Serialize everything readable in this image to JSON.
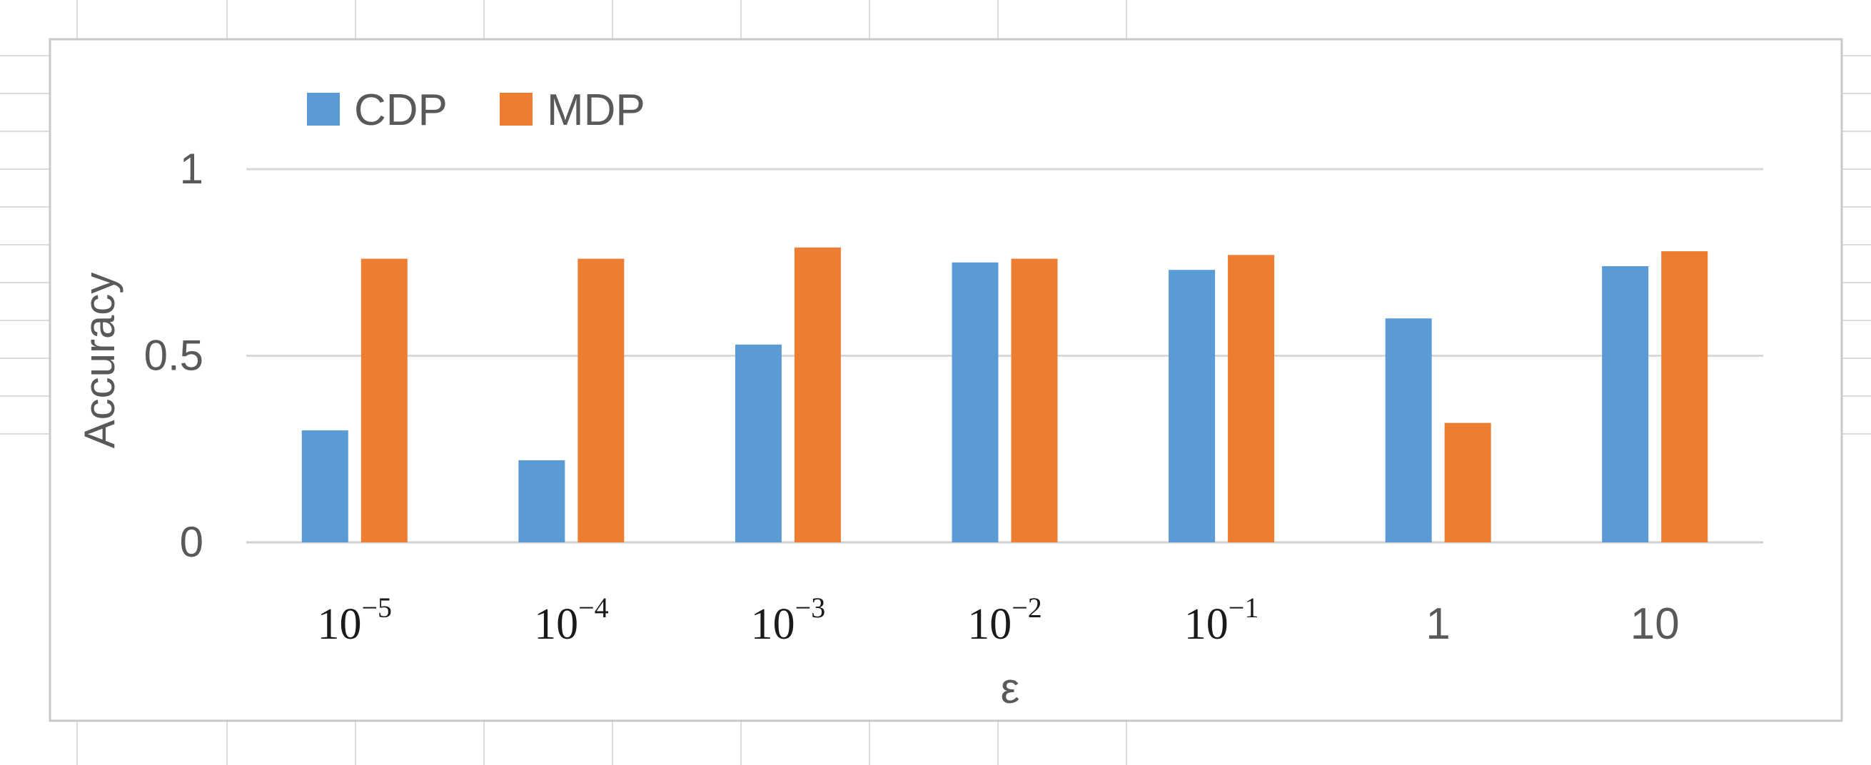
{
  "chart_data": {
    "type": "bar",
    "categories": [
      {
        "base": "10",
        "exp": "−5"
      },
      {
        "base": "10",
        "exp": "−4"
      },
      {
        "base": "10",
        "exp": "−3"
      },
      {
        "base": "10",
        "exp": "−2"
      },
      {
        "base": "10",
        "exp": "−1"
      },
      {
        "base": "1",
        "exp": ""
      },
      {
        "base": "10",
        "exp": ""
      }
    ],
    "series": [
      {
        "name": "CDP",
        "color": "#5b9bd5",
        "values": [
          0.3,
          0.22,
          0.53,
          0.75,
          0.73,
          0.6,
          0.74
        ]
      },
      {
        "name": "MDP",
        "color": "#ed7d31",
        "values": [
          0.76,
          0.76,
          0.79,
          0.76,
          0.77,
          0.32,
          0.78
        ]
      }
    ],
    "xlabel": "ε",
    "ylabel": "Accuracy",
    "ylim": [
      0,
      1
    ],
    "yticks": [
      {
        "value": 0,
        "label": "0"
      },
      {
        "value": 0.5,
        "label": "0.5"
      },
      {
        "value": 1,
        "label": "1"
      }
    ],
    "grid": true,
    "legend_position": "top-left"
  }
}
